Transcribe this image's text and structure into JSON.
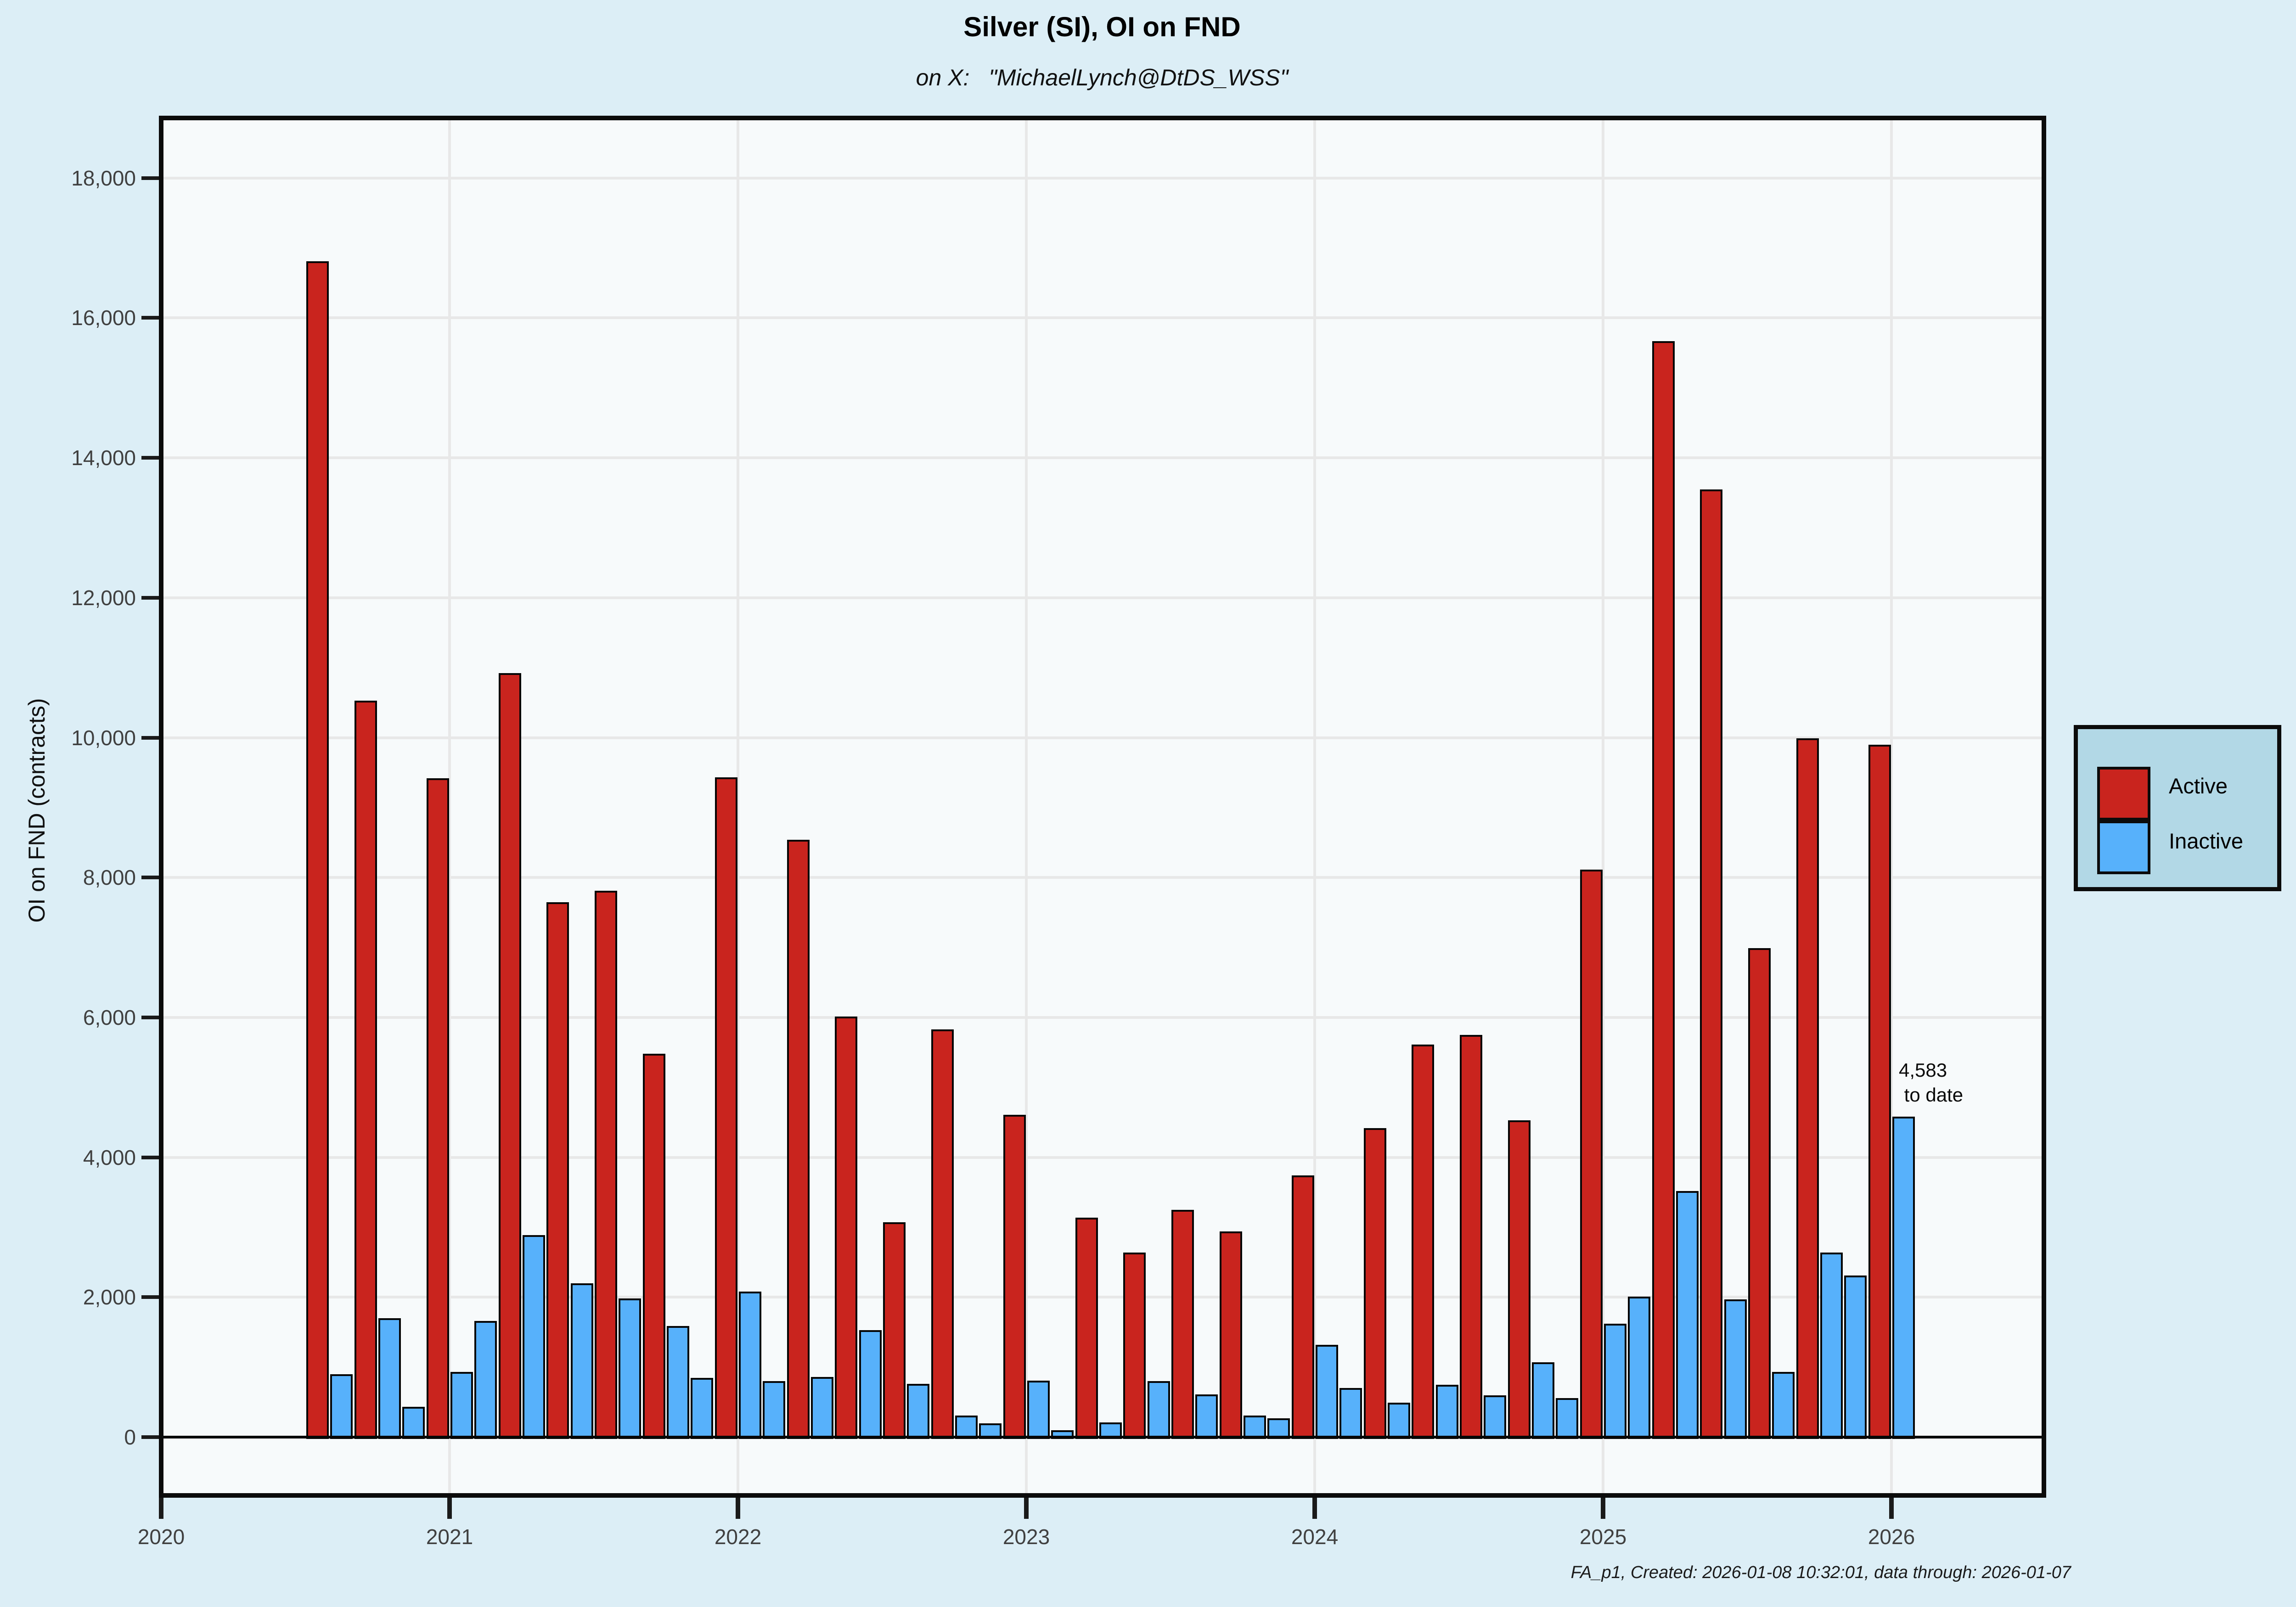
{
  "chart_data": {
    "type": "bar",
    "title": "Silver (SI), OI on FND",
    "subtitle": "on X:   \"MichaelLynch@DtDS_WSS\"",
    "ylabel": "OI on FND (contracts)",
    "ylim": [
      0,
      18000
    ],
    "grid": "on",
    "legend_position": "right",
    "y_ticks": [
      0,
      2000,
      4000,
      6000,
      8000,
      10000,
      12000,
      14000,
      16000,
      18000
    ],
    "y_tick_labels": [
      "0",
      "2,000",
      "4,000",
      "6,000",
      "8,000",
      "10,000",
      "12,000",
      "14,000",
      "16,000",
      "18,000"
    ],
    "x_tick_labels": [
      "2020",
      "2021",
      "2022",
      "2023",
      "2024",
      "2025",
      "2026"
    ],
    "series_names": [
      "Active",
      "Inactive"
    ],
    "bars": [
      {
        "date": "2020-07",
        "series": "active",
        "value": 16810
      },
      {
        "date": "2020-08",
        "series": "inactive",
        "value": 900
      },
      {
        "date": "2020-09",
        "series": "active",
        "value": 10530
      },
      {
        "date": "2020-10",
        "series": "inactive",
        "value": 1700
      },
      {
        "date": "2020-11",
        "series": "inactive",
        "value": 430
      },
      {
        "date": "2020-12",
        "series": "active",
        "value": 9420
      },
      {
        "date": "2021-01",
        "series": "inactive",
        "value": 930
      },
      {
        "date": "2021-02",
        "series": "inactive",
        "value": 1660
      },
      {
        "date": "2021-03",
        "series": "active",
        "value": 10920
      },
      {
        "date": "2021-04",
        "series": "inactive",
        "value": 2890
      },
      {
        "date": "2021-05",
        "series": "active",
        "value": 7650
      },
      {
        "date": "2021-06",
        "series": "inactive",
        "value": 2200
      },
      {
        "date": "2021-07",
        "series": "active",
        "value": 7810
      },
      {
        "date": "2021-08",
        "series": "inactive",
        "value": 1980
      },
      {
        "date": "2021-09",
        "series": "active",
        "value": 5480
      },
      {
        "date": "2021-10",
        "series": "inactive",
        "value": 1590
      },
      {
        "date": "2021-11",
        "series": "inactive",
        "value": 850
      },
      {
        "date": "2021-12",
        "series": "active",
        "value": 9430
      },
      {
        "date": "2022-01",
        "series": "inactive",
        "value": 2080
      },
      {
        "date": "2022-02",
        "series": "inactive",
        "value": 800
      },
      {
        "date": "2022-03",
        "series": "active",
        "value": 8540
      },
      {
        "date": "2022-04",
        "series": "inactive",
        "value": 860
      },
      {
        "date": "2022-05",
        "series": "active",
        "value": 6010
      },
      {
        "date": "2022-06",
        "series": "inactive",
        "value": 1530
      },
      {
        "date": "2022-07",
        "series": "active",
        "value": 3070
      },
      {
        "date": "2022-08",
        "series": "inactive",
        "value": 760
      },
      {
        "date": "2022-09",
        "series": "active",
        "value": 5830
      },
      {
        "date": "2022-10",
        "series": "inactive",
        "value": 310
      },
      {
        "date": "2022-11",
        "series": "inactive",
        "value": 200
      },
      {
        "date": "2022-12",
        "series": "active",
        "value": 4610
      },
      {
        "date": "2023-01",
        "series": "inactive",
        "value": 810
      },
      {
        "date": "2023-02",
        "series": "inactive",
        "value": 100
      },
      {
        "date": "2023-03",
        "series": "active",
        "value": 3140
      },
      {
        "date": "2023-04",
        "series": "inactive",
        "value": 210
      },
      {
        "date": "2023-05",
        "series": "active",
        "value": 2640
      },
      {
        "date": "2023-06",
        "series": "inactive",
        "value": 800
      },
      {
        "date": "2023-07",
        "series": "active",
        "value": 3250
      },
      {
        "date": "2023-08",
        "series": "inactive",
        "value": 610
      },
      {
        "date": "2023-09",
        "series": "active",
        "value": 2940
      },
      {
        "date": "2023-10",
        "series": "inactive",
        "value": 310
      },
      {
        "date": "2023-11",
        "series": "inactive",
        "value": 270
      },
      {
        "date": "2023-12",
        "series": "active",
        "value": 3740
      },
      {
        "date": "2024-01",
        "series": "inactive",
        "value": 1320
      },
      {
        "date": "2024-02",
        "series": "inactive",
        "value": 700
      },
      {
        "date": "2024-03",
        "series": "active",
        "value": 4420
      },
      {
        "date": "2024-04",
        "series": "inactive",
        "value": 490
      },
      {
        "date": "2024-05",
        "series": "active",
        "value": 5610
      },
      {
        "date": "2024-06",
        "series": "inactive",
        "value": 750
      },
      {
        "date": "2024-07",
        "series": "active",
        "value": 5750
      },
      {
        "date": "2024-08",
        "series": "inactive",
        "value": 600
      },
      {
        "date": "2024-09",
        "series": "active",
        "value": 4530
      },
      {
        "date": "2024-10",
        "series": "inactive",
        "value": 1070
      },
      {
        "date": "2024-11",
        "series": "inactive",
        "value": 560
      },
      {
        "date": "2024-12",
        "series": "active",
        "value": 8110
      },
      {
        "date": "2025-01",
        "series": "inactive",
        "value": 1620
      },
      {
        "date": "2025-02",
        "series": "inactive",
        "value": 2010
      },
      {
        "date": "2025-03",
        "series": "active",
        "value": 15670
      },
      {
        "date": "2025-04",
        "series": "inactive",
        "value": 3520
      },
      {
        "date": "2025-05",
        "series": "active",
        "value": 13550
      },
      {
        "date": "2025-06",
        "series": "inactive",
        "value": 1970
      },
      {
        "date": "2025-07",
        "series": "active",
        "value": 6990
      },
      {
        "date": "2025-08",
        "series": "inactive",
        "value": 930
      },
      {
        "date": "2025-09",
        "series": "active",
        "value": 9990
      },
      {
        "date": "2025-10",
        "series": "inactive",
        "value": 2640
      },
      {
        "date": "2025-11",
        "series": "inactive",
        "value": 2310
      },
      {
        "date": "2025-12",
        "series": "active",
        "value": 9900
      },
      {
        "date": "2026-01",
        "series": "inactive",
        "value": 4583
      }
    ],
    "annotation": {
      "line1": "4,583",
      "line2": " to date",
      "anchor_date": "2026-01"
    }
  },
  "legend": {
    "items": [
      {
        "label": "Active",
        "color": "#C9241E"
      },
      {
        "label": "Inactive",
        "color": "#57B1FB"
      }
    ]
  },
  "caption": "FA_p1, Created: 2026-01-08 10:32:01, data through: 2026-01-07",
  "colors": {
    "active": "#C9241E",
    "inactive": "#57B1FB",
    "page_bg": "#DCEEF6",
    "panel_bg": "#F7FAFB",
    "grid": "#E8E8E8",
    "legend_bg": "#B2D8E6"
  }
}
